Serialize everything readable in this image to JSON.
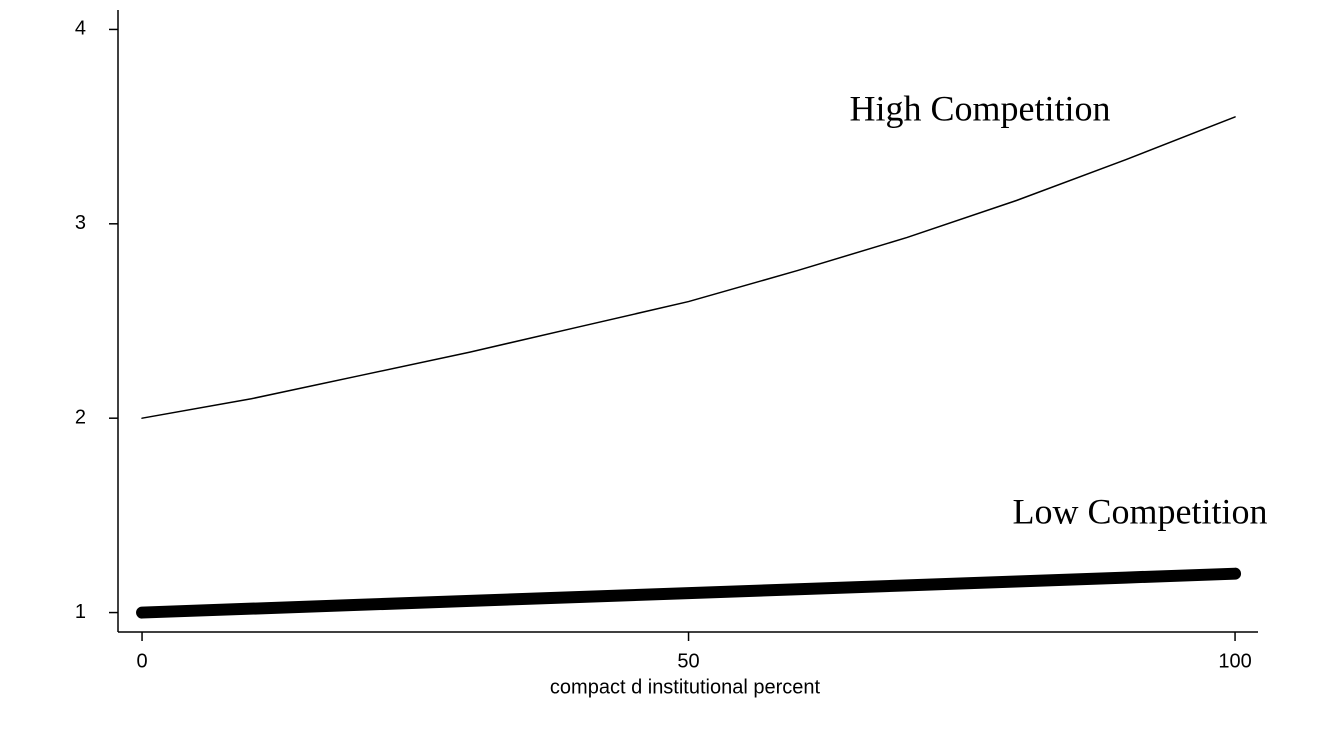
{
  "chart_data": {
    "type": "line",
    "xlabel": "compact d institutional percent",
    "xlim": [
      -2.2,
      102.1
    ],
    "xticks": [
      0,
      50,
      100
    ],
    "ylim": [
      0.9,
      4.1
    ],
    "yticks": [
      1,
      2,
      3,
      4
    ],
    "x": [
      0,
      10,
      20,
      30,
      40,
      50,
      60,
      70,
      80,
      90,
      100
    ],
    "series": [
      {
        "name": "High Competition",
        "color": "#000000",
        "width": 1.5,
        "values": [
          2.0,
          2.1,
          2.22,
          2.34,
          2.47,
          2.6,
          2.76,
          2.93,
          3.12,
          3.33,
          3.55
        ]
      },
      {
        "name": "Low Competition",
        "color": "#000000",
        "width": 12,
        "values": [
          1.0,
          1.02,
          1.04,
          1.06,
          1.08,
          1.1,
          1.12,
          1.14,
          1.16,
          1.18,
          1.2
        ]
      }
    ]
  }
}
